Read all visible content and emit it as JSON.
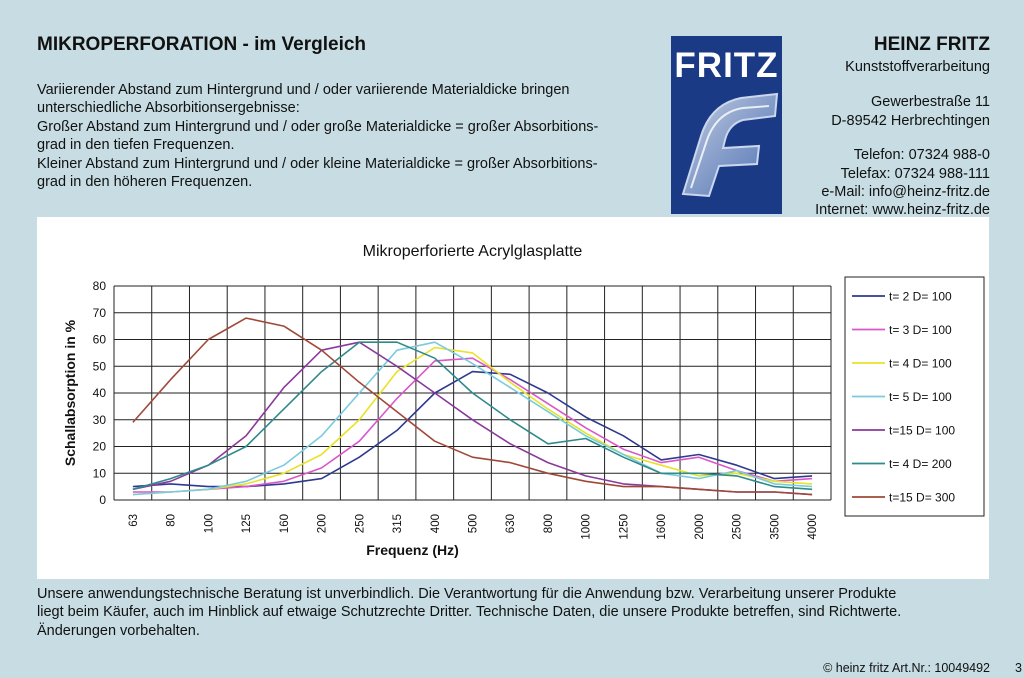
{
  "page_title": "MIKROPERFORATION - im Vergleich",
  "intro": [
    "Variierender Abstand zum Hintergrund und / oder variierende Materialdicke bringen",
    "unterschiedliche Absorbitionsergebnisse:",
    "Großer Abstand zum Hintergrund und / oder große Materialdicke = großer Absorbitions-",
    "grad in den tiefen Frequenzen.",
    "Kleiner Abstand zum Hintergrund und / oder kleine Materialdicke = großer Absorbitions-",
    "grad in den höheren Frequenzen."
  ],
  "logo": {
    "word": "FRITZ",
    "bg": "#1b3a86"
  },
  "company": {
    "name": "HEINZ FRITZ",
    "subtitle": "Kunststoffverarbeitung",
    "street": "Gewerbestraße 11",
    "city": "D-89542 Herbrechtingen",
    "phone": "Telefon: 07324 988-0",
    "fax": "Telefax: 07324 988-111",
    "email": "e-Mail: info@heinz-fritz.de",
    "web": "Internet: www.heinz-fritz.de"
  },
  "chart_data": {
    "type": "line",
    "title": "Mikroperforierte Acrylglasplatte",
    "xlabel": "Frequenz (Hz)",
    "ylabel": "Schallabsorption in %",
    "ylim": [
      0,
      80
    ],
    "yticks": [
      0,
      10,
      20,
      30,
      40,
      50,
      60,
      70,
      80
    ],
    "categories": [
      "63",
      "80",
      "100",
      "125",
      "160",
      "200",
      "250",
      "315",
      "400",
      "500",
      "630",
      "800",
      "1000",
      "1250",
      "1600",
      "2000",
      "2500",
      "3500",
      "4000"
    ],
    "grid": true,
    "legend": "right",
    "series": [
      {
        "name": "t= 2   D= 100",
        "color": "#2e3a8f",
        "values": [
          5,
          6,
          5,
          5,
          6,
          8,
          16,
          26,
          40,
          48,
          47,
          40,
          31,
          24,
          15,
          17,
          13,
          8,
          9
        ]
      },
      {
        "name": "t= 3   D= 100",
        "color": "#d957c8",
        "values": [
          3,
          3,
          4,
          5,
          7,
          12,
          22,
          38,
          52,
          53,
          45,
          36,
          27,
          19,
          14,
          16,
          11,
          7,
          8
        ]
      },
      {
        "name": "t= 4  D=  100",
        "color": "#e8e326",
        "values": [
          2,
          3,
          4,
          6,
          10,
          17,
          30,
          48,
          57,
          55,
          44,
          34,
          25,
          17,
          13,
          9,
          10,
          7,
          6
        ]
      },
      {
        "name": "t= 5  D=  100",
        "color": "#79ccdd",
        "values": [
          2,
          3,
          4,
          7,
          13,
          24,
          40,
          56,
          59,
          51,
          42,
          33,
          24,
          17,
          10,
          8,
          11,
          6,
          5
        ]
      },
      {
        "name": "t=15  D= 100",
        "color": "#8b3a9c",
        "values": [
          4,
          7,
          13,
          24,
          42,
          56,
          59,
          50,
          40,
          30,
          21,
          14,
          9,
          6,
          5,
          4,
          3,
          3,
          2
        ]
      },
      {
        "name": "t= 4   D= 200",
        "color": "#2f8a8c",
        "values": [
          4,
          8,
          13,
          20,
          34,
          48,
          59,
          59,
          53,
          40,
          30,
          21,
          23,
          16,
          10,
          10,
          9,
          5,
          4
        ]
      },
      {
        "name": "t=15  D= 300",
        "color": "#a04838",
        "values": [
          29,
          45,
          60,
          68,
          65,
          56,
          44,
          33,
          22,
          16,
          14,
          10,
          7,
          5,
          5,
          4,
          3,
          3,
          2
        ]
      }
    ]
  },
  "disclaimer": [
    "Unsere anwendungstechnische Beratung ist unverbindlich. Die Verantwortung für die Anwendung bzw. Verarbeitung unserer Produkte",
    "liegt beim Käufer, auch im Hinblick auf etwaige Schutzrechte Dritter. Technische Daten, die unsere Produkte betreffen, sind Richtwerte.",
    "Änderungen vorbehalten."
  ],
  "footer": {
    "copyright": "© heinz fritz Art.Nr.: 10049492",
    "page": "3"
  }
}
